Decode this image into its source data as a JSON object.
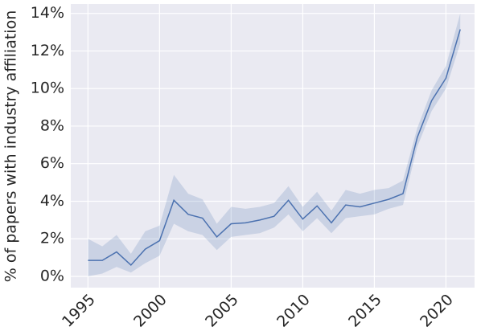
{
  "chart_data": {
    "type": "line",
    "ylabel": "% of papers with industry affiliation",
    "x": [
      1995,
      1996,
      1997,
      1998,
      1999,
      2000,
      2001,
      2002,
      2003,
      2004,
      2005,
      2006,
      2007,
      2008,
      2009,
      2010,
      2011,
      2012,
      2013,
      2014,
      2015,
      2016,
      2017,
      2018,
      2019,
      2020,
      2021
    ],
    "series": [
      {
        "color": "#4c72b0",
        "values": [
          0.85,
          0.85,
          1.3,
          0.6,
          1.45,
          1.9,
          4.05,
          3.3,
          3.1,
          2.1,
          2.8,
          2.85,
          3.0,
          3.2,
          4.05,
          3.05,
          3.75,
          2.85,
          3.8,
          3.7,
          3.9,
          4.1,
          4.4,
          7.4,
          9.35,
          10.55,
          13.15
        ],
        "lower": [
          0.0,
          0.15,
          0.5,
          0.2,
          0.7,
          1.1,
          2.8,
          2.4,
          2.2,
          1.4,
          2.1,
          2.2,
          2.3,
          2.6,
          3.3,
          2.4,
          3.1,
          2.3,
          3.1,
          3.2,
          3.3,
          3.6,
          3.8,
          6.9,
          8.8,
          10.0,
          12.4
        ],
        "upper": [
          2.0,
          1.6,
          2.2,
          1.2,
          2.4,
          2.7,
          5.4,
          4.4,
          4.1,
          2.8,
          3.7,
          3.6,
          3.7,
          3.9,
          4.8,
          3.7,
          4.5,
          3.5,
          4.6,
          4.4,
          4.6,
          4.7,
          5.1,
          7.9,
          9.9,
          11.2,
          14.0
        ]
      }
    ],
    "xlim": [
      1993.8,
      2022.0
    ],
    "xticks": [
      1995,
      2000,
      2005,
      2010,
      2015,
      2020
    ],
    "ylim": [
      -0.6,
      14.5
    ],
    "yticks": [
      {
        "value": 0,
        "label": "0%"
      },
      {
        "value": 2,
        "label": "2%"
      },
      {
        "value": 4,
        "label": "4%"
      },
      {
        "value": 6,
        "label": "6%"
      },
      {
        "value": 8,
        "label": "8%"
      },
      {
        "value": 10,
        "label": "10%"
      },
      {
        "value": 12,
        "label": "12%"
      },
      {
        "value": 14,
        "label": "14%"
      }
    ],
    "grid": true,
    "background": "#eaeaf2"
  }
}
